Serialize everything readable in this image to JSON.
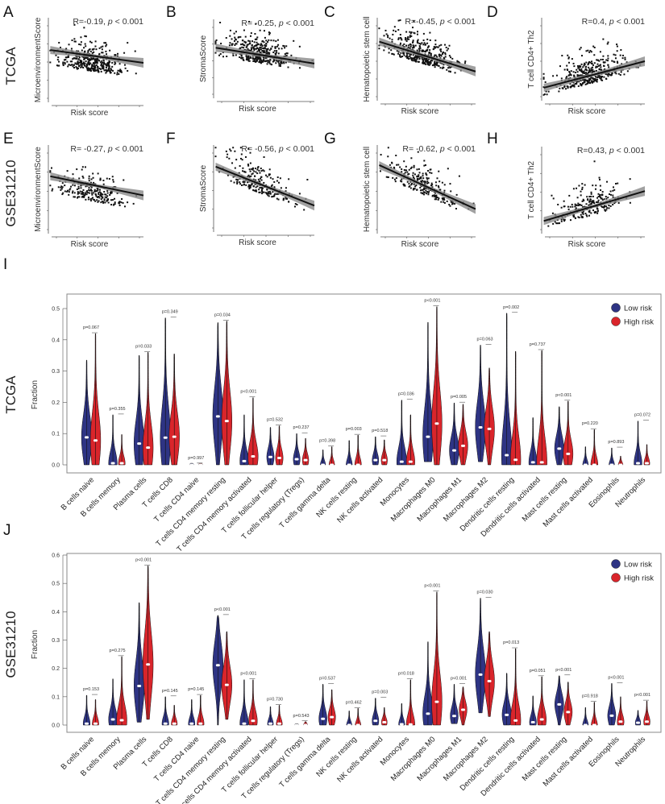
{
  "colors": {
    "low": "#2e3484",
    "high": "#d9252b",
    "line": "#111111",
    "band": "#8a8a8a"
  },
  "scatter_rows": [
    "TCGA",
    "GSE31210"
  ],
  "chart_data": [
    {
      "type": "scatter",
      "letter": "A",
      "xlabel": "Risk score",
      "ylabel": "MicroenvironmentScore",
      "r_label": "R=-0.19,",
      "p_label": "p",
      "p_rest": " < 0.001",
      "r": -0.19
    },
    {
      "type": "scatter",
      "letter": "B",
      "xlabel": "Risk score",
      "ylabel": "StromaScore",
      "r_label": "R= -0.25,",
      "p_label": "p",
      "p_rest": " < 0.001",
      "r": -0.25
    },
    {
      "type": "scatter",
      "letter": "C",
      "xlabel": "Risk score",
      "ylabel": "Hematopoietic stem cell",
      "r_label": "R=-0.45,",
      "p_label": "p",
      "p_rest": " < 0.001",
      "r": -0.45
    },
    {
      "type": "scatter",
      "letter": "D",
      "xlabel": "Risk score",
      "ylabel": "T cell CD4+ Th2",
      "r_label": "R=0.4,",
      "p_label": "p",
      "p_rest": " < 0.001",
      "r": 0.4
    },
    {
      "type": "scatter",
      "letter": "E",
      "xlabel": "Risk score",
      "ylabel": "MicroenvironmentScore",
      "r_label": "R= -0.27,",
      "p_label": "p",
      "p_rest": " < 0.001",
      "r": -0.27
    },
    {
      "type": "scatter",
      "letter": "F",
      "xlabel": "Risk score",
      "ylabel": "StromaScore",
      "r_label": "R= -0.56,",
      "p_label": "p",
      "p_rest": " < 0.001",
      "r": -0.56
    },
    {
      "type": "scatter",
      "letter": "G",
      "xlabel": "Risk score",
      "ylabel": "Hematopoietic stem cell",
      "r_label": "R= -0.62,",
      "p_label": "p",
      "p_rest": " < 0.001",
      "r": -0.62
    },
    {
      "type": "scatter",
      "letter": "H",
      "xlabel": "Risk score",
      "ylabel": "T cell CD4+ Th2",
      "r_label": "R=0.43,",
      "p_label": "p",
      "p_rest": " < 0.001",
      "r": 0.43
    },
    {
      "type": "violin",
      "letter": "I",
      "row_label": "TCGA",
      "ylabel": "Fraction",
      "ylim": [
        0,
        0.5
      ],
      "yticks": [
        "0.0",
        "0.1",
        "0.2",
        "0.3",
        "0.4",
        "0.5"
      ],
      "legend": [
        "Low risk",
        "High risk"
      ],
      "categories": [
        "B cells naive",
        "B cells memory",
        "Plasma cells",
        "T cells CD8",
        "T cells CD4 naive",
        "T cells CD4 memory resting",
        "T cells CD4 memory activated",
        "T cells follicular helper",
        "T cells regulatory (Tregs)",
        "T cells gamma delta",
        "NK cells resting",
        "NK cells activated",
        "Monocytes",
        "Macrophages M0",
        "Macrophages M1",
        "Macrophages M2",
        "Dendritic cells resting",
        "Dendritic cells activated",
        "Mast cells resting",
        "Mast cells activated",
        "Eosinophils",
        "Neutrophils"
      ],
      "p_values": [
        "p=0.067",
        "p=0.355",
        "p=0.033",
        "p=0.349",
        "p=0.997",
        "p=0.034",
        "p<0.001",
        "p=0.532",
        "p=0.237",
        "p=0.398",
        "p=0.003",
        "p=0.518",
        "p=0.036",
        "p<0.001",
        "p=0.005",
        "p=0.063",
        "p=0.002",
        "p=0.737",
        "p<0.001",
        "p=0.220",
        "p=0.893",
        "p=0.072"
      ],
      "series": [
        {
          "name": "Low risk",
          "median": [
            0.088,
            0.005,
            0.068,
            0.087,
            0,
            0.155,
            0.012,
            0.025,
            0.018,
            0,
            0,
            0.015,
            0.01,
            0.09,
            0.046,
            0.12,
            0.031,
            0.008,
            0.052,
            0,
            0,
            0.005
          ],
          "max": [
            0.335,
            0.16,
            0.35,
            0.47,
            0.003,
            0.455,
            0.16,
            0.12,
            0.1,
            0.048,
            0.078,
            0.09,
            0.207,
            0.456,
            0.198,
            0.383,
            0.485,
            0.151,
            0.186,
            0.058,
            0.054,
            0.14
          ],
          "min": [
            0,
            0,
            0,
            0,
            0,
            0,
            0,
            0,
            0,
            0,
            0,
            0,
            0,
            0.01,
            0,
            0.01,
            0,
            0,
            0,
            0,
            0,
            0
          ]
        },
        {
          "name": "High risk",
          "median": [
            0.078,
            0.005,
            0.055,
            0.09,
            0,
            0.14,
            0.027,
            0.022,
            0.015,
            0,
            0,
            0.015,
            0.01,
            0.132,
            0.061,
            0.115,
            0.016,
            0.008,
            0.035,
            0,
            0,
            0.005
          ],
          "max": [
            0.42,
            0.097,
            0.36,
            0.355,
            0.003,
            0.46,
            0.215,
            0.125,
            0.085,
            0.058,
            0.095,
            0.08,
            0.16,
            0.506,
            0.194,
            0.31,
            0.363,
            0.366,
            0.204,
            0.113,
            0.028,
            0.065
          ],
          "min": [
            0,
            0,
            0,
            0,
            0,
            0,
            0,
            0,
            0,
            0,
            0,
            0,
            0,
            0,
            0,
            0,
            0,
            0,
            0,
            0,
            0,
            0
          ]
        }
      ]
    },
    {
      "type": "violin",
      "letter": "J",
      "row_label": "GSE31210",
      "ylabel": "Fraction",
      "ylim": [
        0,
        0.6
      ],
      "yticks": [
        "0.0",
        "0.1",
        "0.2",
        "0.3",
        "0.4",
        "0.5",
        "0.6"
      ],
      "legend": [
        "Low risk",
        "High risk"
      ],
      "categories": [
        "B cells naive",
        "B cells memory",
        "Plasma cells",
        "T cells CD8",
        "T cells CD4 naive",
        "T cells CD4 memory resting",
        "T cells CD4 memory activated",
        "T cells follicular helper",
        "T cells regulatory (Tregs)",
        "T cells gamma delta",
        "NK cells resting",
        "NK cells activated",
        "Monocytes",
        "Macrophages M0",
        "Macrophages M1",
        "Macrophages M2",
        "Dendritic cells resting",
        "Dendritic cells activated",
        "Mast cells resting",
        "Mast cells activated",
        "Eosinophils",
        "Neutrophils"
      ],
      "p_values": [
        "p=0.153",
        "p=0.275",
        "p<0.001",
        "p=0.145",
        "p=0.145",
        "p<0.001",
        "p<0.001",
        "p=0.730",
        "p=0.543",
        "p=0.537",
        "p=0.462",
        "p=0.003",
        "p=0.018",
        "p<0.001",
        "p<0.001",
        "p=0.030",
        "p=0.013",
        "p=0.051",
        "p<0.001",
        "p=0.918",
        "p<0.001",
        "p<0.001"
      ],
      "series": [
        {
          "name": "Low risk",
          "median": [
            0.005,
            0.02,
            0.138,
            0.005,
            0.005,
            0.211,
            0.005,
            0.005,
            0,
            0.022,
            0,
            0.015,
            0.003,
            0.04,
            0.032,
            0.178,
            0.036,
            0.01,
            0.073,
            0,
            0.033,
            0.008
          ],
          "max": [
            0.105,
            0.163,
            0.432,
            0.1,
            0.09,
            0.387,
            0.16,
            0.065,
            0.005,
            0.144,
            0.05,
            0.095,
            0.076,
            0.294,
            0.144,
            0.448,
            0.183,
            0.103,
            0.174,
            0.062,
            0.147,
            0.052
          ],
          "min": [
            0,
            0,
            0.01,
            0,
            0,
            0,
            0,
            0,
            0,
            0,
            0,
            0,
            0,
            0,
            0.005,
            0.043,
            0,
            0,
            0,
            0,
            0,
            0
          ]
        },
        {
          "name": "High risk",
          "median": [
            0.005,
            0.017,
            0.214,
            0.005,
            0.005,
            0.142,
            0.015,
            0.005,
            0,
            0.028,
            0,
            0.01,
            0.002,
            0.082,
            0.054,
            0.155,
            0.016,
            0.02,
            0.046,
            0,
            0.012,
            0.012
          ],
          "max": [
            0.09,
            0.242,
            0.562,
            0.07,
            0.105,
            0.33,
            0.16,
            0.07,
            0.012,
            0.125,
            0.059,
            0.062,
            0.16,
            0.47,
            0.135,
            0.33,
            0.27,
            0.171,
            0.152,
            0.081,
            0.1,
            0.085
          ],
          "min": [
            0,
            0,
            0.02,
            0,
            0,
            0.02,
            0,
            0,
            0,
            0,
            0,
            0,
            0,
            0,
            0,
            0.03,
            0,
            0,
            0,
            0,
            0,
            0
          ]
        }
      ]
    }
  ]
}
